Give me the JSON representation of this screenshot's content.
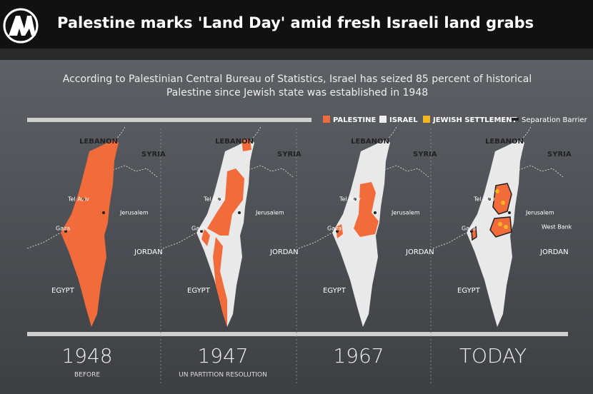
{
  "header": {
    "title": "Palestine marks 'Land Day' amid fresh Israeli land grabs"
  },
  "infographic": {
    "intro": [
      "According to Palestinian Central Bureau of Statistics, Israel has seized 85 percent of historical",
      "Palestine since Jewish state was established in 1948"
    ],
    "legend": [
      "PALESTINE",
      "ISRAEL",
      "JEWISH SETTLEMENT",
      "Separation Barrier"
    ],
    "panels": [
      {
        "labels": [
          "LEBANON",
          "SYRIA",
          "Tel Aviv",
          "Jerusalem",
          "Gaza",
          "JORDAN",
          "EGYPT"
        ],
        "year": "1948",
        "caption": "BEFORE"
      },
      {
        "labels": [
          "LEBANON",
          "SYRIA",
          "Tel Aviv",
          "Jerusalem",
          "Gaza",
          "JORDAN",
          "EGYPT"
        ],
        "year": "1947",
        "caption": "UN PARTITION RESOLUTION"
      },
      {
        "labels": [
          "LEBANON",
          "SYRIA",
          "Tel Aviv",
          "Jerusalem",
          "Gaza",
          "JORDAN",
          "EGYPT"
        ],
        "year": "1967"
      },
      {
        "labels": [
          "LEBANON",
          "SYRIA",
          "Tel Aviv",
          "Jerusalem",
          "Gaza",
          "JORDAN",
          "EGYPT",
          "West Bank"
        ],
        "year": "TODAY"
      }
    ]
  }
}
